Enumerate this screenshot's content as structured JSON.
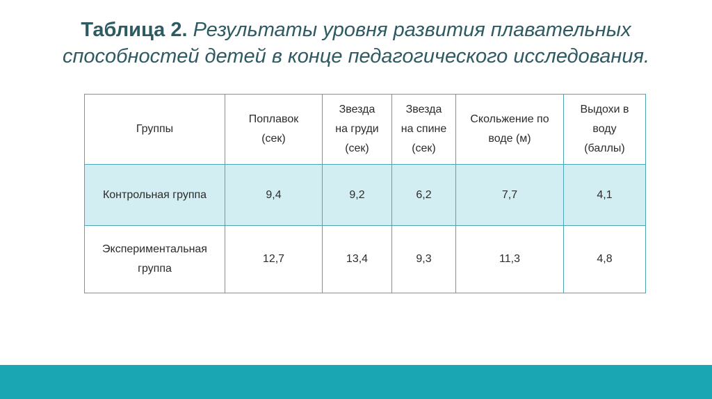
{
  "slide": {
    "title_bold": "Таблица 2.",
    "title_italic": "Результаты уровня развития плавательных способностей детей в конце педагогического исследования."
  },
  "table": {
    "headers": [
      "Группы",
      "Поплавок\n(сек)",
      "Звезда\nна груди\n(сек)",
      "Звезда\nна спине\n(сек)",
      "Скольжение по\nводе (м)",
      "Выдохи в\nводу\n(баллы)"
    ],
    "rows": [
      [
        "Контрольная группа",
        "9,4",
        "9,2",
        "6,2",
        "7,7",
        "4,1"
      ],
      [
        "Экспериментальная\nгруппа",
        "12,7",
        "13,4",
        "9,3",
        "11,3",
        "4,8"
      ]
    ]
  },
  "colors": {
    "title": "#2e5a62",
    "table_border": "#4ba7b6",
    "highlight_row": "#d2eef3",
    "footer_band": "#1ba6b4"
  }
}
